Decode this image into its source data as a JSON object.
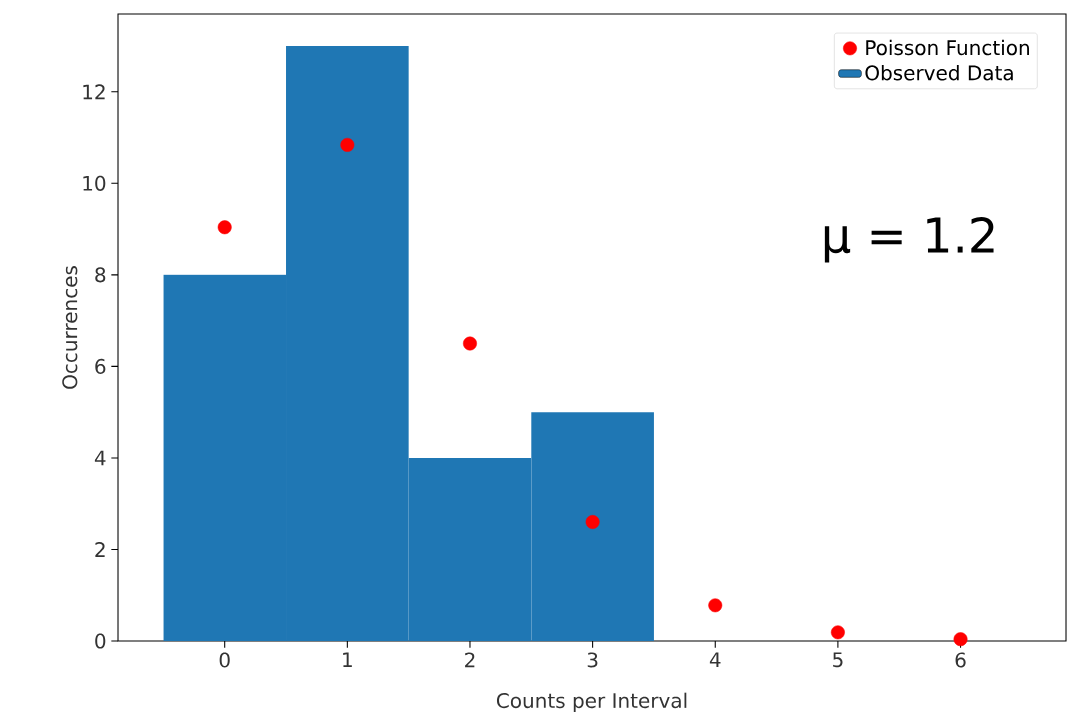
{
  "chart_data": {
    "type": "histogram",
    "xlabel": "Counts per Interval",
    "ylabel": "Occurrences",
    "xlim": [
      -0.87,
      6.86
    ],
    "ylim": [
      0,
      13.7
    ],
    "xticks": [
      0,
      1,
      2,
      3,
      4,
      5,
      6
    ],
    "yticks": [
      0,
      2,
      4,
      6,
      8,
      10,
      12
    ],
    "legend": "top right",
    "marker": "circle",
    "annotations": [
      "μ = 1.2"
    ],
    "series": [
      {
        "type": "histogram",
        "name": "Observed Data",
        "color": "#1f77b4",
        "bins": [
          -0.5,
          0.5,
          1.5,
          2.5,
          3.5
        ],
        "values": [
          8,
          13,
          4,
          5
        ]
      },
      {
        "type": "scatter",
        "name": "Poisson Function",
        "color": "#ff0000",
        "x": [
          0,
          1,
          2,
          3,
          4,
          5,
          6
        ],
        "values": [
          9.04,
          10.84,
          6.5,
          2.6,
          0.78,
          0.19,
          0.04
        ]
      }
    ]
  }
}
